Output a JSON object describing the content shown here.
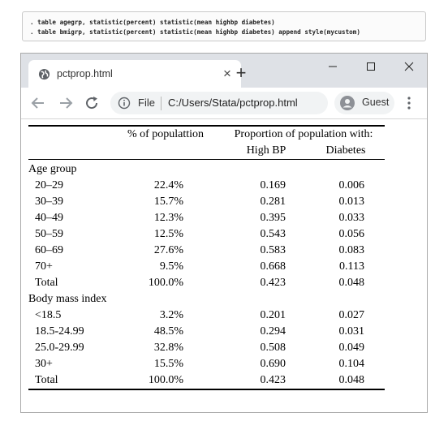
{
  "commands": [
    ". table agegrp, statistic(percent) statistic(mean highbp diabetes)",
    ". table bmigrp, statistic(percent) statistic(mean highbp diabetes) append style(mycustom)"
  ],
  "browser": {
    "tab_title": "pctprop.html",
    "tab_close": "×",
    "new_tab": "+",
    "file_label": "File",
    "url": "C:/Users/Stata/pctprop.html",
    "profile": "Guest",
    "icons": [
      "globe-icon",
      "close-icon",
      "plus-icon",
      "minimize-icon",
      "maximize-icon",
      "close-window-icon",
      "back-arrow-icon",
      "forward-arrow-icon",
      "reload-icon",
      "info-icon",
      "avatar-icon",
      "kebab-menu-icon"
    ]
  },
  "table": {
    "header": {
      "pct": "% of populattion",
      "prop": "Proportion of population with:",
      "bp": "High BP",
      "db": "Diabetes"
    },
    "groups": [
      {
        "title": "Age group",
        "rows": [
          {
            "label": "20–29",
            "pct": "22.4%",
            "bp": "0.169",
            "db": "0.006"
          },
          {
            "label": "30–39",
            "pct": "15.7%",
            "bp": "0.281",
            "db": "0.013"
          },
          {
            "label": "40–49",
            "pct": "12.3%",
            "bp": "0.395",
            "db": "0.033"
          },
          {
            "label": "50–59",
            "pct": "12.5%",
            "bp": "0.543",
            "db": "0.056"
          },
          {
            "label": "60–69",
            "pct": "27.6%",
            "bp": "0.583",
            "db": "0.083"
          },
          {
            "label": "70+",
            "pct": "9.5%",
            "bp": "0.668",
            "db": "0.113"
          },
          {
            "label": "Total",
            "pct": "100.0%",
            "bp": "0.423",
            "db": "0.048"
          }
        ]
      },
      {
        "title": "Body mass index",
        "rows": [
          {
            "label": "<18.5",
            "pct": "3.2%",
            "bp": "0.201",
            "db": "0.027"
          },
          {
            "label": "18.5-24.99",
            "pct": "48.5%",
            "bp": "0.294",
            "db": "0.031"
          },
          {
            "label": "25.0-29.99",
            "pct": "32.8%",
            "bp": "0.508",
            "db": "0.049"
          },
          {
            "label": "30+",
            "pct": "15.5%",
            "bp": "0.690",
            "db": "0.104"
          },
          {
            "label": "Total",
            "pct": "100.0%",
            "bp": "0.423",
            "db": "0.048"
          }
        ]
      }
    ]
  }
}
